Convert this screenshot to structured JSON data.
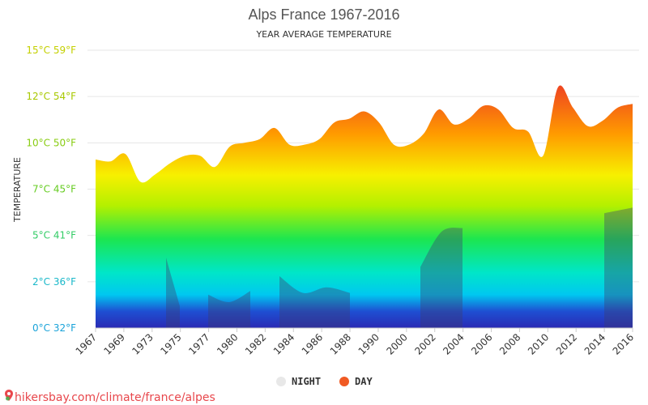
{
  "chart_data": {
    "type": "area",
    "title": "Alps France 1967-2016",
    "subtitle": "YEAR AVERAGE TEMPERATURE",
    "ylabel": "TEMPERATURE",
    "ylim": [
      0,
      15
    ],
    "y_ticks": [
      {
        "value": 0,
        "label": "0°C 32°F",
        "color": "#1aa3d9"
      },
      {
        "value": 2.5,
        "label": "2°C 36°F",
        "color": "#1ab8c9"
      },
      {
        "value": 5,
        "label": "5°C 41°F",
        "color": "#33cc66"
      },
      {
        "value": 7.5,
        "label": "7°C 45°F",
        "color": "#66cc22"
      },
      {
        "value": 10,
        "label": "10°C 50°F",
        "color": "#88cc11"
      },
      {
        "value": 12.5,
        "label": "12°C 54°F",
        "color": "#a8c800"
      },
      {
        "value": 15,
        "label": "15°C 59°F",
        "color": "#c4d000"
      }
    ],
    "x_tick_labels": [
      "1967",
      "1969",
      "1973",
      "1975",
      "1977",
      "1980",
      "1982",
      "1984",
      "1986",
      "1988",
      "1990",
      "2000",
      "2002",
      "2004",
      "2006",
      "2008",
      "2010",
      "2012",
      "2014",
      "2016"
    ],
    "grid": "horizontal",
    "legend_position": "bottom-center",
    "series": [
      {
        "name": "DAY",
        "color": "#f05a23",
        "values": [
          9.1,
          9.0,
          9.4,
          7.9,
          8.3,
          8.9,
          9.3,
          9.3,
          8.7,
          9.8,
          10.0,
          10.2,
          10.8,
          9.9,
          9.9,
          10.2,
          11.1,
          11.3,
          11.7,
          11.1,
          9.9,
          9.9,
          10.5,
          11.8,
          11.0,
          11.3,
          12.0,
          11.8,
          10.8,
          10.6,
          9.3,
          13.0,
          11.9,
          10.9,
          11.2,
          11.9,
          12.1
        ]
      },
      {
        "name": "NIGHT",
        "color": "#e8e8e8",
        "segments": [
          {
            "values": [
              3.8,
              1.2
            ]
          },
          {
            "values": [
              1.8,
              1.4,
              2.0
            ]
          },
          {
            "values": [
              2.8,
              1.9,
              2.2,
              1.9
            ]
          },
          {
            "values": [
              3.3,
              5.2,
              5.4
            ]
          },
          {
            "values": [
              6.2,
              6.5
            ]
          }
        ]
      }
    ]
  },
  "legend": {
    "night_label": "NIGHT",
    "day_label": "DAY",
    "night_color": "#e8e8e8",
    "day_color": "#f05a23"
  },
  "source": {
    "text": "hikersbay.com/climate/france/alpes",
    "icon": "map-pin-icon"
  }
}
